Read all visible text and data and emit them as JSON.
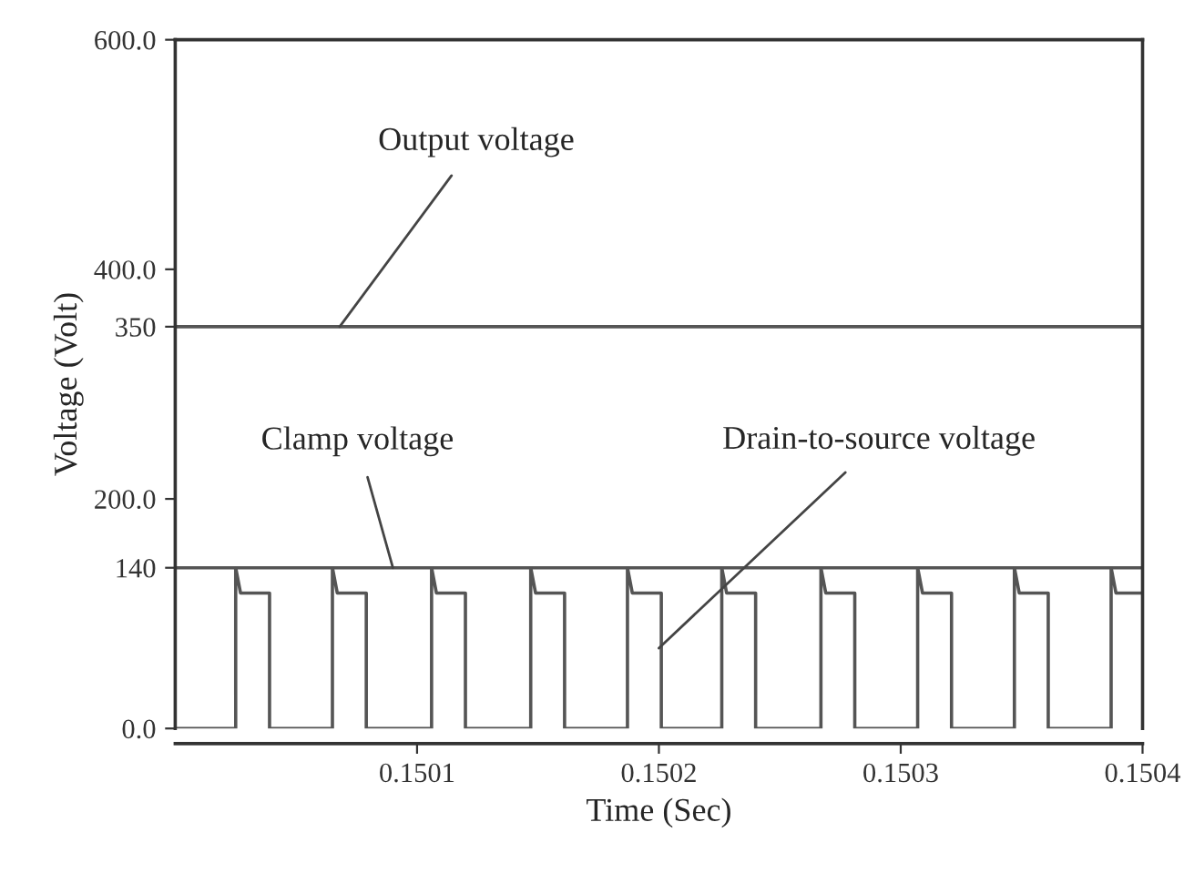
{
  "chart_data": {
    "type": "line",
    "xlabel": "Time (Sec)",
    "ylabel": "Voltage (Volt)",
    "xlim": [
      0.15,
      0.1504
    ],
    "xticks": [
      0.1501,
      0.1502,
      0.1503,
      0.1504
    ],
    "ylim": [
      0,
      600
    ],
    "yticks": [
      {
        "value": 0,
        "label": "0.0"
      },
      140,
      {
        "value": 200,
        "label": "200.0"
      },
      350,
      {
        "value": 400,
        "label": "400.0"
      },
      {
        "value": 600,
        "label": "600.0"
      }
    ],
    "grid": false,
    "legend": false,
    "line_style": "solid",
    "marker": "none",
    "series": [
      {
        "color": "#555555",
        "x": [
          0.15,
          0.1504
        ],
        "values": [
          350,
          350
        ]
      },
      {
        "color": "#555555",
        "x": [
          0.15,
          0.1504
        ],
        "values": [
          140,
          140
        ]
      },
      {
        "color": "#555555",
        "x": [
          0.15,
          0.150025,
          0.150025,
          0.150027,
          0.150039,
          0.150039,
          0.150065,
          0.150065,
          0.150067,
          0.150079,
          0.150079,
          0.150106,
          0.150106,
          0.150108,
          0.15012,
          0.15012,
          0.150147,
          0.150147,
          0.150149,
          0.150161,
          0.150161,
          0.150187,
          0.150187,
          0.150189,
          0.150201,
          0.150201,
          0.150226,
          0.150226,
          0.150228,
          0.15024,
          0.15024,
          0.150267,
          0.150267,
          0.150269,
          0.150281,
          0.150281,
          0.150307,
          0.150307,
          0.150309,
          0.150321,
          0.150321,
          0.150347,
          0.150347,
          0.150349,
          0.150361,
          0.150361,
          0.150387,
          0.150387,
          0.150389,
          0.1504
        ],
        "values": [
          0,
          0,
          140,
          118,
          118,
          0,
          0,
          140,
          118,
          118,
          0,
          0,
          140,
          118,
          118,
          0,
          0,
          140,
          118,
          118,
          0,
          0,
          140,
          118,
          118,
          0,
          0,
          140,
          118,
          118,
          0,
          0,
          140,
          118,
          118,
          0,
          0,
          140,
          118,
          118,
          0,
          0,
          140,
          118,
          118,
          0,
          0,
          140,
          118,
          118
        ]
      }
    ],
    "annotations": [
      {
        "text": "Output voltage",
        "x": 0.150068,
        "y": 350
      },
      {
        "text": "Clamp voltage",
        "x": 0.15009,
        "y": 140
      },
      {
        "text": "Drain-to-source voltage",
        "x": 0.1502,
        "y": 70
      }
    ]
  }
}
